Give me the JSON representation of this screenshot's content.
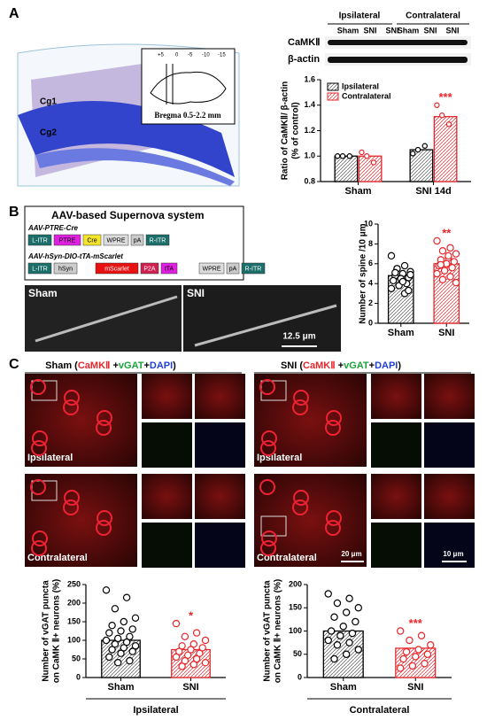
{
  "panel_labels": [
    "A",
    "B",
    "C"
  ],
  "brain": {
    "regions": [
      "Cg1",
      "Cg2"
    ],
    "inset_ticks": [
      "+5",
      "0",
      "-5",
      "-10",
      "-15"
    ],
    "inset_caption": "Bregma 0.5-2.2 mm"
  },
  "blot": {
    "groups": [
      "Ipsilateral",
      "Contralateral"
    ],
    "lanes": [
      "Sham",
      "SNI",
      "SNI",
      "Sham",
      "SNI",
      "SNI"
    ],
    "proteins": [
      "CaMKⅡ",
      "β-actin"
    ]
  },
  "supernova": {
    "title": "AAV-based Supernova system",
    "constructs": [
      {
        "name": "AAV-PTRE-Cre",
        "elements": [
          "L-ITR",
          "PTRE",
          "Cre",
          "WPRE",
          "pA",
          "R-ITR"
        ]
      },
      {
        "name": "AAV-hSyn-DIO-tTA-mScarlet",
        "elements": [
          "L-ITR",
          "hSyn",
          "mScarlet",
          "P2A",
          "tTA",
          "WPRE",
          "pA",
          "R-ITR"
        ]
      }
    ]
  },
  "spine_images": {
    "labels": [
      "Sham",
      "SNI"
    ],
    "scale_bar": "12.5 μm"
  },
  "staining": {
    "panels": [
      {
        "title_parts": [
          "Sham (",
          "CaMKⅡ",
          " +",
          "vGAT",
          "+",
          "DAPI",
          ")"
        ]
      },
      {
        "title_parts": [
          "SNI (",
          "CaMKⅡ",
          " +",
          "vGAT",
          "+",
          "DAPI",
          ")"
        ]
      }
    ],
    "part_colors": [
      "#000000",
      "#e8262b",
      "#000000",
      "#1aa33a",
      "#000000",
      "#1f3fd6",
      "#000000"
    ],
    "rows": [
      "Ipsilateral",
      "Contralateral"
    ],
    "scale_bars": [
      "20 μm",
      "10 μm"
    ]
  },
  "chart_data": [
    {
      "type": "bar",
      "ylabel": [
        "Ratio of CaMKⅡ/ β-actin",
        "(% of control)"
      ],
      "categories": [
        "Sham",
        "SNI 14d"
      ],
      "ylim": [
        0.8,
        1.6
      ],
      "yticks": [
        0.8,
        {
          "value": 1,
          "label": "1.0"
        },
        1.2,
        1.4,
        1.6
      ],
      "annotation": "***",
      "legend": "upper left",
      "series": [
        {
          "name": "Ipsilateral",
          "color": "#000000",
          "values": [
            1.0,
            1.05
          ],
          "points": [
            [
              1.0,
              1.0,
              1.0
            ],
            [
              1.02,
              1.08,
              1.05
            ]
          ]
        },
        {
          "name": "Contralateral",
          "color": "#e8262b",
          "values": [
            1.0,
            1.31
          ],
          "points": [
            [
              1.03,
              0.95,
              1.0
            ],
            [
              1.4,
              1.25,
              1.32
            ]
          ]
        }
      ]
    },
    {
      "type": "bar",
      "ylabel": [
        "Number of spine /10 μm"
      ],
      "categories": [
        "Sham",
        "SNI"
      ],
      "ylim": [
        0,
        10
      ],
      "yticks": [
        0,
        2,
        4,
        6,
        8,
        10
      ],
      "annotation": "**",
      "colors": [
        "#000000",
        "#e8262b"
      ],
      "values": [
        4.8,
        6.0
      ],
      "points": [
        [
          6.8,
          5.8,
          5.5,
          5.2,
          5.0,
          4.8,
          4.6,
          4.5,
          4.3,
          4.0,
          3.8,
          3.5,
          3.0,
          5.5,
          4.9,
          4.2,
          5.1,
          3.3
        ],
        [
          8.3,
          7.6,
          7.3,
          7.0,
          6.6,
          6.4,
          6.2,
          6.0,
          5.8,
          5.6,
          5.3,
          5.0,
          4.7,
          4.4,
          4.1,
          6.8,
          5.9
        ]
      ]
    },
    {
      "type": "bar",
      "ylabel": [
        "Number of vGAT puncta",
        "on CaMK Ⅱ+ neurons (%)"
      ],
      "categories": [
        "Sham",
        "SNI"
      ],
      "group_label": "Ipsilateral",
      "ylim": [
        0,
        250
      ],
      "yticks": [
        0,
        50,
        100,
        150,
        200,
        250
      ],
      "annotation": "*",
      "colors": [
        "#000000",
        "#e8262b"
      ],
      "values": [
        100,
        75
      ],
      "points": [
        [
          235,
          215,
          185,
          160,
          150,
          140,
          130,
          125,
          120,
          110,
          105,
          100,
          95,
          90,
          85,
          80,
          75,
          70,
          65,
          55,
          45,
          40
        ],
        [
          145,
          120,
          110,
          100,
          90,
          85,
          80,
          75,
          70,
          65,
          60,
          55,
          50,
          45,
          40,
          35,
          30
        ]
      ]
    },
    {
      "type": "bar",
      "ylabel": [
        "Number of vGAT puncta",
        "on CaMK Ⅱ+ neurons (%)"
      ],
      "categories": [
        "Sham",
        "SNI"
      ],
      "group_label": "Contralateral",
      "ylim": [
        0,
        200
      ],
      "yticks": [
        0,
        50,
        100,
        150,
        200
      ],
      "annotation": "***",
      "colors": [
        "#000000",
        "#e8262b"
      ],
      "values": [
        100,
        63
      ],
      "points": [
        [
          180,
          170,
          160,
          150,
          140,
          130,
          120,
          110,
          100,
          95,
          90,
          80,
          75,
          70,
          60,
          50,
          40
        ],
        [
          100,
          90,
          80,
          70,
          60,
          55,
          50,
          45,
          40,
          30,
          25,
          20
        ]
      ]
    }
  ]
}
